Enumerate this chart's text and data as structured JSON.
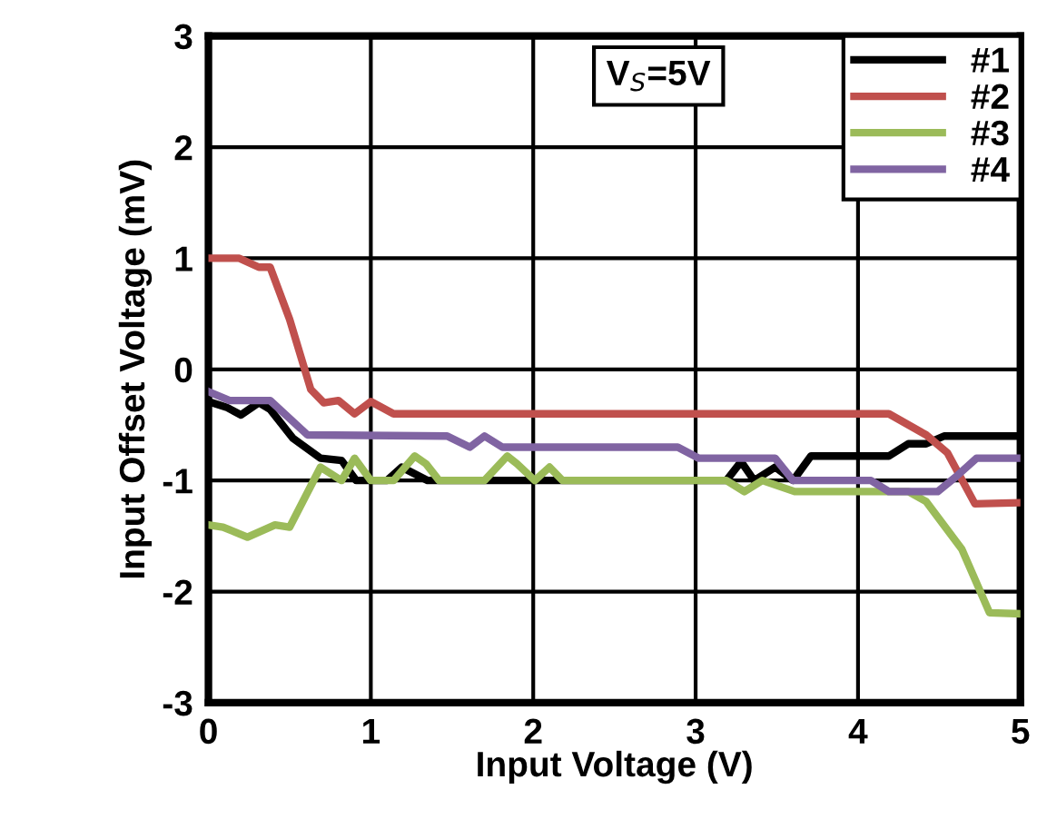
{
  "chart_data": {
    "type": "line",
    "xlabel": "Input Voltage (V)",
    "ylabel": "Input Offset Voltage (mV)",
    "xlim": [
      0,
      5
    ],
    "ylim": [
      -3,
      3
    ],
    "xticks": [
      0,
      1,
      2,
      3,
      4,
      5
    ],
    "yticks": [
      -3,
      -2,
      -1,
      0,
      1,
      2,
      3
    ],
    "grid": true,
    "legend": "top right",
    "marker": "none",
    "line_style": "solid",
    "annotations": [
      "V$_{S}$=5V"
    ],
    "series": [
      {
        "name": "#1",
        "color": "#000000",
        "x": [
          0,
          0.11,
          0.2,
          0.31,
          0.38,
          0.52,
          0.69,
          0.82,
          0.91,
          1.1,
          1.19,
          1.35,
          3.19,
          3.28,
          3.36,
          3.49,
          3.6,
          3.71,
          4.19,
          4.31,
          4.42,
          4.53,
          5
        ],
        "values": [
          -0.29,
          -0.34,
          -0.41,
          -0.3,
          -0.36,
          -0.62,
          -0.8,
          -0.82,
          -1.0,
          -1.0,
          -0.88,
          -1.0,
          -1.0,
          -0.83,
          -1.0,
          -0.88,
          -1.0,
          -0.78,
          -0.78,
          -0.67,
          -0.67,
          -0.6,
          -0.6
        ]
      },
      {
        "name": "#2",
        "color": "#c0504d",
        "x": [
          0,
          0.19,
          0.31,
          0.38,
          0.5,
          0.63,
          0.71,
          0.8,
          0.9,
          1.0,
          1.14,
          4.19,
          4.42,
          4.55,
          4.72,
          5
        ],
        "values": [
          1.0,
          1.0,
          0.92,
          0.92,
          0.45,
          -0.18,
          -0.3,
          -0.28,
          -0.4,
          -0.29,
          -0.4,
          -0.4,
          -0.59,
          -0.75,
          -1.21,
          -1.2
        ]
      },
      {
        "name": "#3",
        "color": "#9bbb59",
        "x": [
          0,
          0.09,
          0.24,
          0.41,
          0.5,
          0.69,
          0.82,
          0.9,
          1.0,
          1.14,
          1.27,
          1.34,
          1.42,
          1.7,
          1.84,
          1.9,
          2.01,
          2.1,
          2.18,
          3.19,
          3.3,
          3.41,
          3.61,
          4.31,
          4.42,
          4.64,
          4.81,
          5
        ],
        "values": [
          -1.4,
          -1.42,
          -1.51,
          -1.4,
          -1.42,
          -0.88,
          -1.0,
          -0.8,
          -1.0,
          -1.0,
          -0.78,
          -0.85,
          -1.0,
          -1.0,
          -0.78,
          -0.85,
          -1.0,
          -0.88,
          -1.0,
          -1.0,
          -1.1,
          -1.0,
          -1.1,
          -1.1,
          -1.19,
          -1.62,
          -2.19,
          -2.2
        ]
      },
      {
        "name": "#4",
        "color": "#8064a2",
        "x": [
          0,
          0.13,
          0.38,
          0.61,
          1.47,
          1.61,
          1.7,
          1.81,
          2.89,
          3.02,
          3.49,
          3.6,
          4.08,
          4.19,
          4.49,
          4.6,
          4.73,
          5
        ],
        "values": [
          -0.2,
          -0.28,
          -0.28,
          -0.59,
          -0.6,
          -0.7,
          -0.6,
          -0.7,
          -0.7,
          -0.8,
          -0.8,
          -1.0,
          -1.0,
          -1.1,
          -1.1,
          -0.97,
          -0.8,
          -0.8
        ]
      }
    ]
  }
}
